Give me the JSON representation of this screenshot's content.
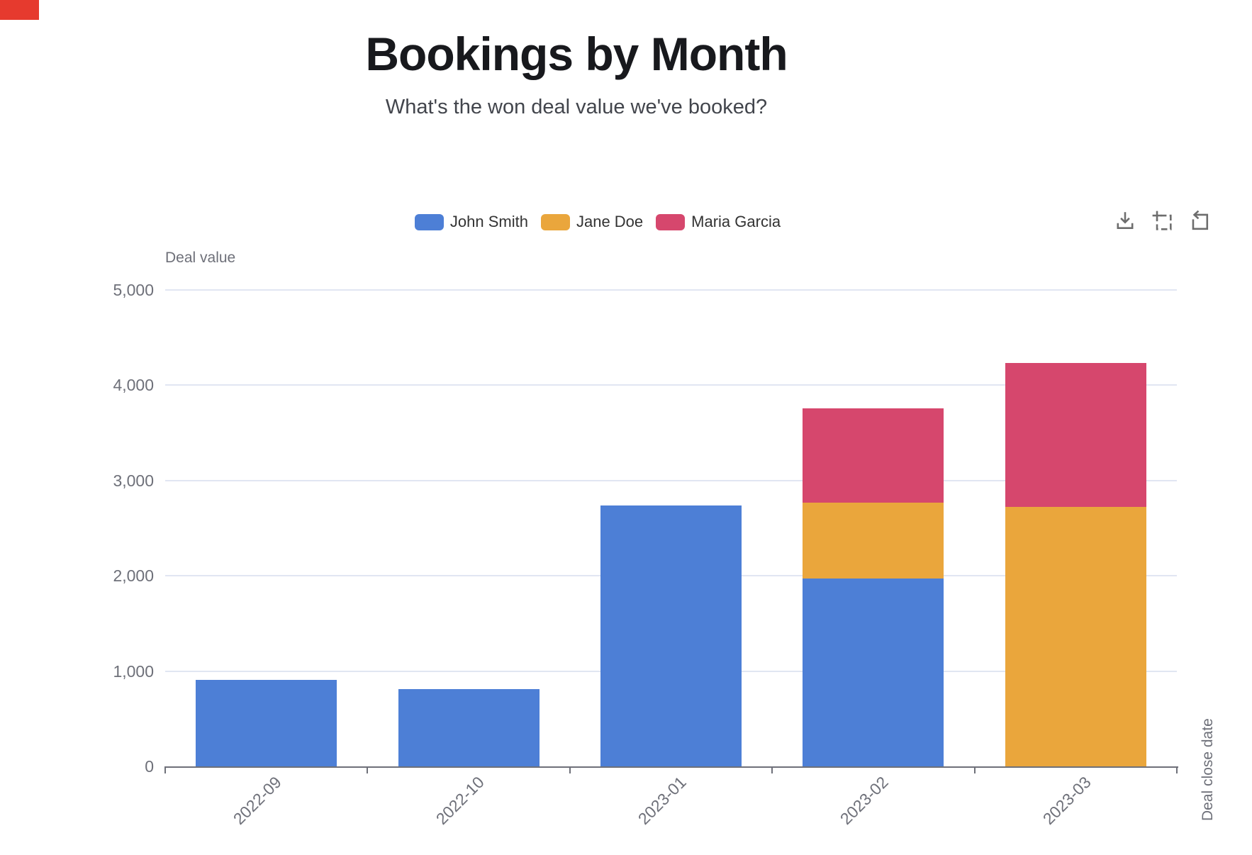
{
  "misc": {
    "corner_marker_color": "#e63a2e"
  },
  "toolbox": {
    "icons": [
      "download-icon",
      "zoom-select-icon",
      "restore-icon"
    ]
  },
  "chart_data": {
    "type": "bar",
    "stacked": true,
    "title": "Bookings by Month",
    "subtitle": "What's the won deal value we've booked?",
    "categories": [
      "2022-09",
      "2022-10",
      "2023-01",
      "2023-02",
      "2023-03"
    ],
    "series": [
      {
        "name": "John Smith",
        "color": "#4d7fd6",
        "values": [
          910,
          810,
          2740,
          1970,
          0
        ]
      },
      {
        "name": "Jane Doe",
        "color": "#eaa63c",
        "values": [
          0,
          0,
          0,
          800,
          2720
        ]
      },
      {
        "name": "Maria Garcia",
        "color": "#d6476d",
        "values": [
          0,
          0,
          0,
          990,
          1510
        ]
      }
    ],
    "xlabel": "Deal close date",
    "ylabel": "Deal value",
    "ylim": [
      0,
      5000
    ],
    "yticks": [
      0,
      1000,
      2000,
      3000,
      4000,
      5000
    ],
    "grid": true,
    "legend_position": "top-center"
  }
}
